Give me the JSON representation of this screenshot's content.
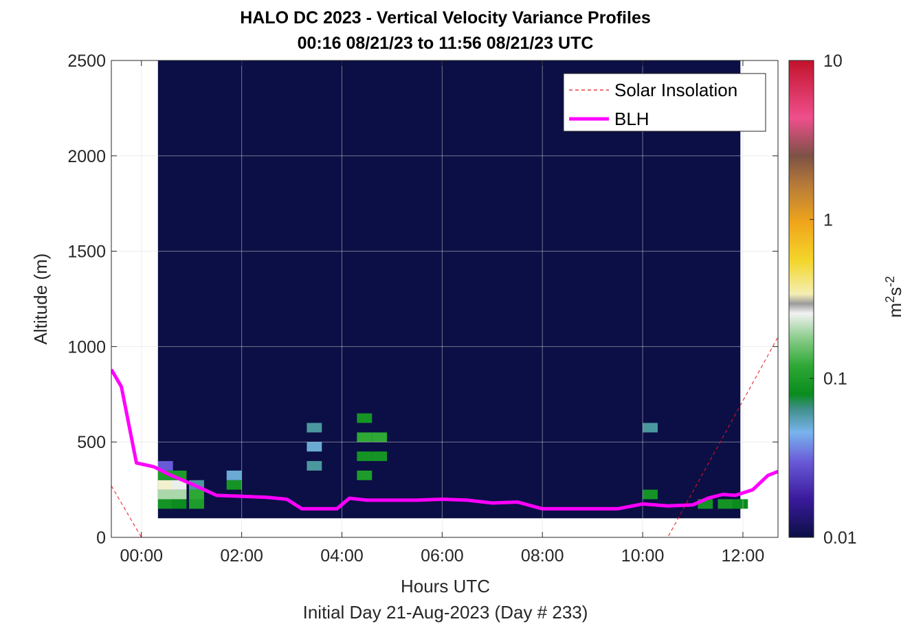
{
  "chart_data": {
    "type": "heatmap",
    "title": "HALO DC 2023 - Vertical Velocity Variance Profiles",
    "subtitle": "00:16 08/21/23 to 11:56 08/21/23  UTC",
    "xlabel": "Hours UTC",
    "xlabel2": "Initial Day 21-Aug-2023 (Day # 233)",
    "ylabel": "Altitude (m)",
    "xlim": [
      -0.6,
      12.7
    ],
    "ylim": [
      0,
      2500
    ],
    "x_ticks": [
      0,
      2,
      4,
      6,
      8,
      10,
      12
    ],
    "x_tick_labels": [
      "00:00",
      "02:00",
      "04:00",
      "06:00",
      "08:00",
      "10:00",
      "12:00"
    ],
    "y_ticks": [
      0,
      500,
      1000,
      1500,
      2000,
      2500
    ],
    "y_tick_labels": [
      "0",
      "500",
      "1000",
      "1500",
      "2000",
      "2500"
    ],
    "grid": true,
    "colorbar": {
      "label": "m²s⁻²",
      "scale": "log",
      "range": [
        0.01,
        10
      ],
      "ticks": [
        0.01,
        0.1,
        1,
        10
      ],
      "tick_labels": [
        "0.01",
        "0.1",
        "1",
        "10"
      ]
    },
    "colors": {
      "background": "#0b0f45",
      "blh": "#ff00ff",
      "solar": "#e8141c"
    },
    "heatmap": {
      "x_start": 0.33,
      "x_end": 11.95,
      "y_start": 100,
      "y_end": 2500,
      "description_cells": [
        {
          "t": 0.33,
          "h": 150,
          "v": 0.09
        },
        {
          "t": 0.33,
          "h": 200,
          "v": 0.2
        },
        {
          "t": 0.33,
          "h": 250,
          "v": 0.3
        },
        {
          "t": 0.33,
          "h": 300,
          "v": 0.1
        },
        {
          "t": 0.33,
          "h": 350,
          "v": 0.03
        },
        {
          "t": 0.6,
          "h": 150,
          "v": 0.08
        },
        {
          "t": 0.6,
          "h": 200,
          "v": 0.2
        },
        {
          "t": 0.6,
          "h": 250,
          "v": 0.25
        },
        {
          "t": 0.6,
          "h": 300,
          "v": 0.1
        },
        {
          "t": 0.95,
          "h": 150,
          "v": 0.1
        },
        {
          "t": 0.95,
          "h": 200,
          "v": 0.12
        },
        {
          "t": 0.95,
          "h": 250,
          "v": 0.06
        },
        {
          "t": 1.7,
          "h": 250,
          "v": 0.09
        },
        {
          "t": 1.7,
          "h": 300,
          "v": 0.05
        },
        {
          "t": 4.3,
          "h": 300,
          "v": 0.1
        },
        {
          "t": 4.3,
          "h": 400,
          "v": 0.09
        },
        {
          "t": 4.3,
          "h": 500,
          "v": 0.12
        },
        {
          "t": 4.3,
          "h": 600,
          "v": 0.09
        },
        {
          "t": 4.6,
          "h": 400,
          "v": 0.09
        },
        {
          "t": 4.6,
          "h": 500,
          "v": 0.12
        },
        {
          "t": 3.3,
          "h": 350,
          "v": 0.06
        },
        {
          "t": 3.3,
          "h": 450,
          "v": 0.05
        },
        {
          "t": 3.3,
          "h": 550,
          "v": 0.06
        },
        {
          "t": 10.0,
          "h": 200,
          "v": 0.09
        },
        {
          "t": 10.0,
          "h": 550,
          "v": 0.06
        },
        {
          "t": 11.1,
          "h": 150,
          "v": 0.09
        },
        {
          "t": 11.5,
          "h": 150,
          "v": 0.09
        },
        {
          "t": 11.8,
          "h": 150,
          "v": 0.08
        }
      ]
    },
    "series": [
      {
        "name": "Solar Insolation",
        "style": "dashed",
        "x": [
          -0.6,
          0.0,
          10.5,
          12.7
        ],
        "y": [
          270,
          0,
          0,
          1050
        ]
      },
      {
        "name": "BLH",
        "style": "solid",
        "x": [
          -0.6,
          -0.4,
          -0.1,
          0.25,
          0.55,
          1.0,
          1.5,
          2.0,
          2.5,
          2.9,
          3.2,
          3.5,
          3.9,
          4.15,
          4.5,
          5.0,
          5.5,
          6.0,
          6.5,
          7.0,
          7.5,
          8.0,
          8.5,
          9.0,
          9.5,
          10.0,
          10.5,
          11.0,
          11.3,
          11.6,
          11.85,
          12.2,
          12.5,
          12.7
        ],
        "y": [
          880,
          790,
          390,
          370,
          330,
          280,
          220,
          215,
          210,
          200,
          150,
          150,
          150,
          205,
          195,
          195,
          195,
          200,
          195,
          180,
          185,
          150,
          150,
          150,
          150,
          175,
          165,
          170,
          205,
          225,
          220,
          250,
          325,
          345
        ]
      }
    ],
    "legend": {
      "placement": "top-right",
      "entries": [
        "Solar Insolation",
        "BLH"
      ]
    }
  }
}
